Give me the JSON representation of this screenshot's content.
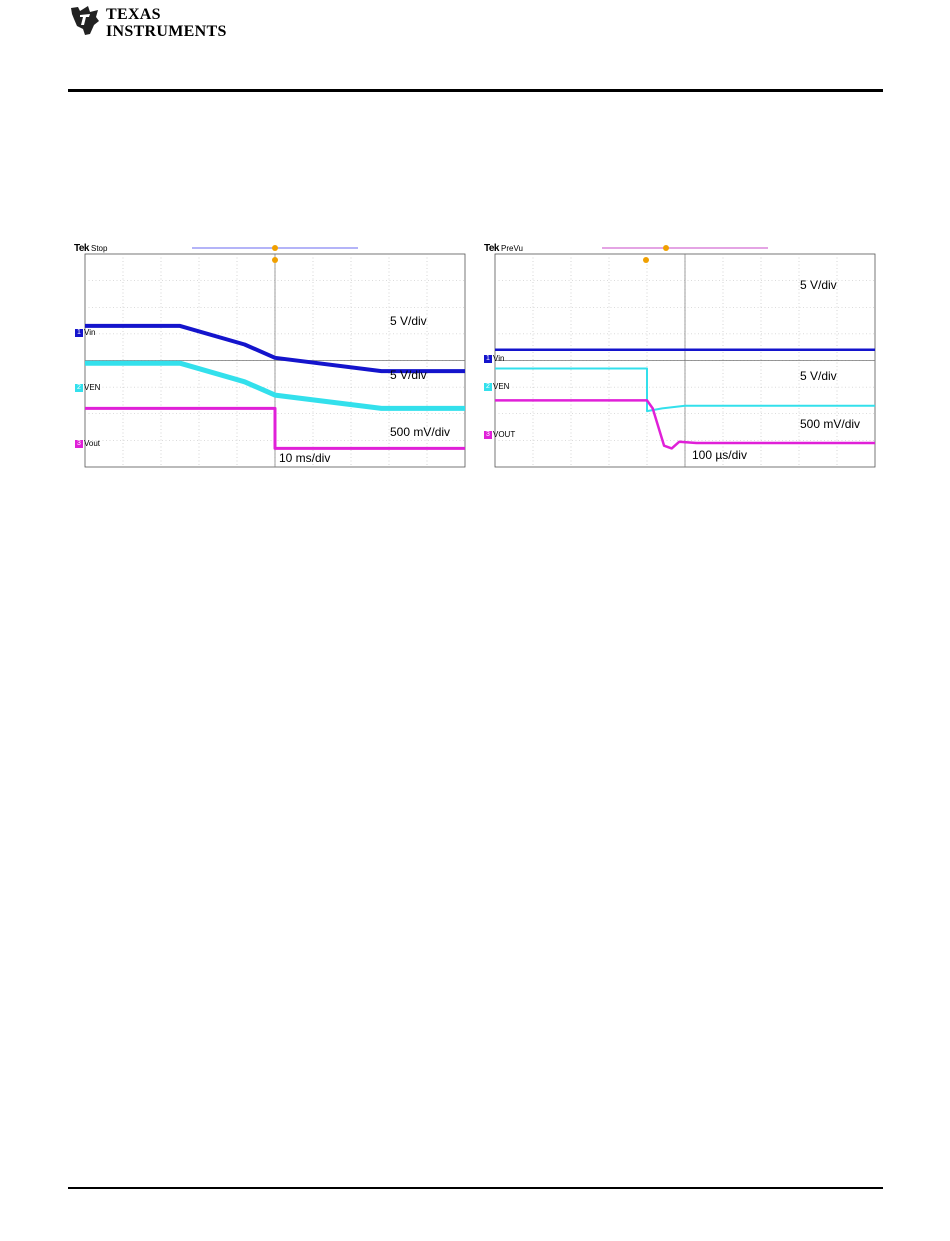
{
  "header": {
    "company_line1": "Texas",
    "company_line2": "Instruments"
  },
  "chart_data": [
    {
      "type": "line",
      "scope_label": "Tek",
      "scope_state": "Stop",
      "time_scale": "10 ms/div",
      "time_range_div": [
        0,
        10
      ],
      "vertical_range_div": [
        0,
        8
      ],
      "grid": true,
      "series": [
        {
          "name": "Vin",
          "scale": "5 V/div",
          "color": "#1414cc",
          "points": [
            [
              0,
              5.3
            ],
            [
              2.5,
              5.3
            ],
            [
              4.2,
              4.6
            ],
            [
              5.0,
              4.1
            ],
            [
              7.8,
              3.6
            ],
            [
              10,
              3.6
            ]
          ]
        },
        {
          "name": "VEN",
          "scale": "5 V/div",
          "color": "#33e0ec",
          "points": [
            [
              0,
              3.9
            ],
            [
              2.5,
              3.9
            ],
            [
              4.2,
              3.2
            ],
            [
              5.0,
              2.7
            ],
            [
              7.8,
              2.2
            ],
            [
              10,
              2.2
            ]
          ]
        },
        {
          "name": "Vout",
          "scale": "500 mV/div",
          "color": "#e020d8",
          "points": [
            [
              0,
              2.2
            ],
            [
              5.0,
              2.2
            ],
            [
              5.0,
              0.7
            ],
            [
              10,
              0.7
            ]
          ]
        }
      ]
    },
    {
      "type": "line",
      "scope_label": "Tek",
      "scope_state": "PreVu",
      "time_scale": "100 µs/div",
      "time_range_div": [
        0,
        10
      ],
      "vertical_range_div": [
        0,
        8
      ],
      "grid": true,
      "series": [
        {
          "name": "Vin",
          "scale": "5 V/div",
          "color": "#1414cc",
          "points": [
            [
              0,
              4.4
            ],
            [
              10,
              4.4
            ]
          ]
        },
        {
          "name": "VEN",
          "scale": "5 V/div",
          "color": "#33e0ec",
          "points": [
            [
              0,
              3.7
            ],
            [
              4.0,
              3.7
            ],
            [
              4.0,
              2.1
            ],
            [
              4.4,
              2.2
            ],
            [
              5.0,
              2.3
            ],
            [
              10,
              2.3
            ]
          ]
        },
        {
          "name": "VOUT",
          "scale": "500 mV/div",
          "color": "#e020d8",
          "points": [
            [
              0,
              2.5
            ],
            [
              4.0,
              2.5
            ],
            [
              4.15,
              2.2
            ],
            [
              4.45,
              0.8
            ],
            [
              4.65,
              0.7
            ],
            [
              4.85,
              0.95
            ],
            [
              5.3,
              0.9
            ],
            [
              10,
              0.9
            ]
          ]
        }
      ]
    }
  ]
}
